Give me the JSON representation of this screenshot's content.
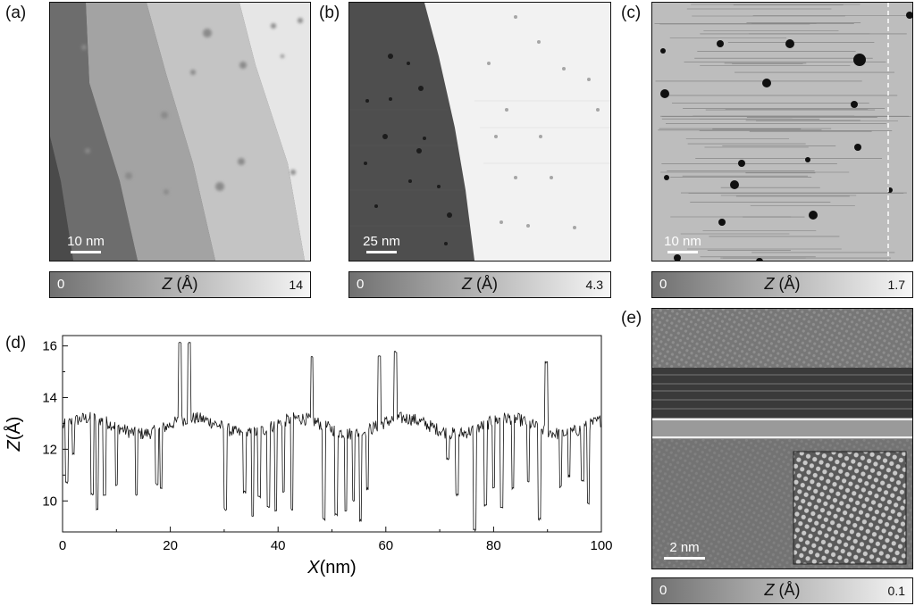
{
  "panels": {
    "a": {
      "label": "(a)",
      "scale": "10 nm",
      "cbar_min": "0",
      "cbar_title_var": "Z",
      "cbar_title_unit": " (Å)",
      "cbar_max": "14"
    },
    "b": {
      "label": "(b)",
      "scale": "25 nm",
      "cbar_min": "0",
      "cbar_title_var": "Z",
      "cbar_title_unit": " (Å)",
      "cbar_max": "4.3"
    },
    "c": {
      "label": "(c)",
      "scale": "10 nm",
      "cbar_min": "0",
      "cbar_title_var": "Z",
      "cbar_title_unit": " (Å)",
      "cbar_max": "1.7"
    },
    "d": {
      "label": "(d)"
    },
    "e": {
      "label": "(e)",
      "scale": "2 nm",
      "cbar_min": "0",
      "cbar_title_var": "Z",
      "cbar_title_unit": " (Å)",
      "cbar_max": "0.1"
    }
  },
  "colors": {
    "line": "#111111",
    "scalebar": "#ffffff",
    "frame": "#111111"
  },
  "chart_data": {
    "type": "line",
    "title": "",
    "xlabel_var": "X",
    "xlabel_unit": "(nm)",
    "ylabel_var": "Z",
    "ylabel_unit": "(Å)",
    "xlim": [
      0,
      100
    ],
    "ylim": [
      8.8,
      16.4
    ],
    "xticks": [
      0,
      20,
      40,
      60,
      80,
      100
    ],
    "yticks": [
      10,
      12,
      14,
      16
    ],
    "grid": false,
    "baseline": 12.9,
    "noise": 0.25,
    "spikes_up": [
      {
        "x": 21.8,
        "y": 16.1
      },
      {
        "x": 23.5,
        "y": 16.05
      },
      {
        "x": 46.3,
        "y": 15.5
      },
      {
        "x": 58.8,
        "y": 15.6
      },
      {
        "x": 61.8,
        "y": 15.7
      },
      {
        "x": 89.8,
        "y": 15.4
      }
    ],
    "spikes_down": [
      {
        "x": 0.8,
        "y": 10.7
      },
      {
        "x": 2.0,
        "y": 11.8
      },
      {
        "x": 5.5,
        "y": 10.2
      },
      {
        "x": 6.4,
        "y": 9.6
      },
      {
        "x": 7.8,
        "y": 10.2
      },
      {
        "x": 10.0,
        "y": 10.6
      },
      {
        "x": 13.7,
        "y": 10.3
      },
      {
        "x": 17.5,
        "y": 10.7
      },
      {
        "x": 18.3,
        "y": 10.5
      },
      {
        "x": 30.2,
        "y": 9.7
      },
      {
        "x": 33.8,
        "y": 10.4
      },
      {
        "x": 35.3,
        "y": 9.5
      },
      {
        "x": 36.5,
        "y": 10.2
      },
      {
        "x": 38.2,
        "y": 9.8
      },
      {
        "x": 39.6,
        "y": 9.6
      },
      {
        "x": 41.0,
        "y": 10.3
      },
      {
        "x": 42.6,
        "y": 9.6
      },
      {
        "x": 48.5,
        "y": 9.3
      },
      {
        "x": 50.8,
        "y": 9.5
      },
      {
        "x": 52.6,
        "y": 9.7
      },
      {
        "x": 54.0,
        "y": 10.1
      },
      {
        "x": 55.3,
        "y": 9.3
      },
      {
        "x": 56.6,
        "y": 10.5
      },
      {
        "x": 71.5,
        "y": 11.7
      },
      {
        "x": 73.2,
        "y": 10.3
      },
      {
        "x": 76.5,
        "y": 8.9
      },
      {
        "x": 78.5,
        "y": 9.8
      },
      {
        "x": 80.0,
        "y": 10.5
      },
      {
        "x": 81.5,
        "y": 9.7
      },
      {
        "x": 83.6,
        "y": 10.4
      },
      {
        "x": 86.4,
        "y": 10.7
      },
      {
        "x": 88.5,
        "y": 9.3
      },
      {
        "x": 92.4,
        "y": 10.6
      },
      {
        "x": 94.0,
        "y": 11.0
      },
      {
        "x": 96.5,
        "y": 10.8
      },
      {
        "x": 97.6,
        "y": 9.9
      }
    ]
  }
}
